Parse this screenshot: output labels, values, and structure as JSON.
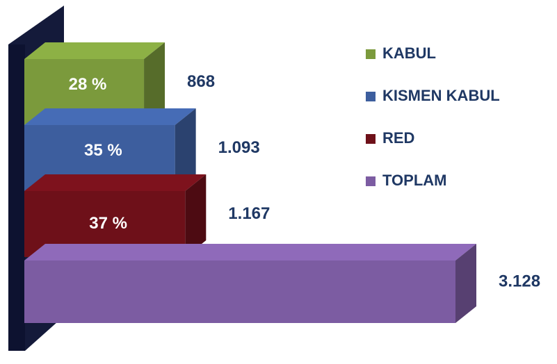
{
  "chart_data": {
    "type": "bar3d",
    "categories": [
      "KABUL",
      "KISMEN KABUL",
      "RED",
      "TOPLAM"
    ],
    "values": [
      868,
      1093,
      1167,
      3128
    ],
    "value_labels": [
      "868",
      "1.093",
      "1.167",
      "3.128"
    ],
    "percent_labels": [
      "28 %",
      "35 %",
      "37 %"
    ],
    "colors": [
      "#7b9a3c",
      "#3d5e9e",
      "#6e1019",
      "#7c5ca2"
    ],
    "legend": "upper right"
  }
}
